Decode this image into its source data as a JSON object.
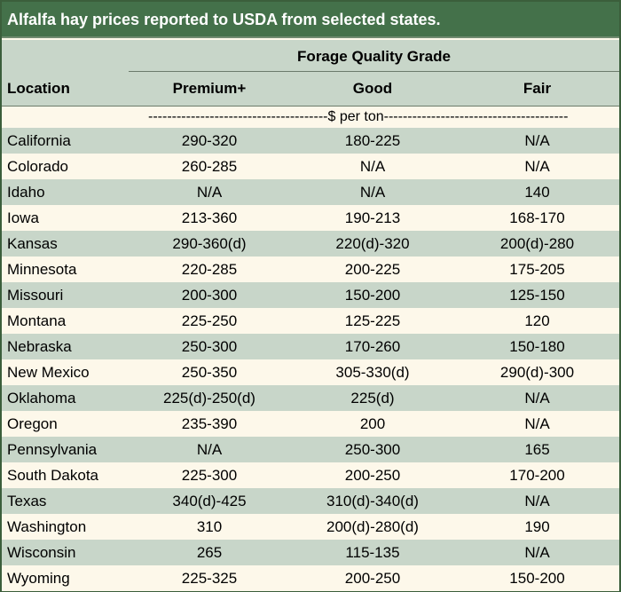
{
  "title": "Alfalfa hay prices reported to USDA from selected states.",
  "header": {
    "group": "Forage Quality Grade",
    "location": "Location",
    "columns": [
      "Premium+",
      "Good",
      "Fair"
    ]
  },
  "unit_row": "--------------------------------------$ per ton---------------------------------------",
  "rows": [
    {
      "location": "California",
      "premium": "290-320",
      "good": "180-225",
      "fair": "N/A"
    },
    {
      "location": "Colorado",
      "premium": "260-285",
      "good": "N/A",
      "fair": "N/A"
    },
    {
      "location": "Idaho",
      "premium": "N/A",
      "good": "N/A",
      "fair": "140"
    },
    {
      "location": "Iowa",
      "premium": "213-360",
      "good": "190-213",
      "fair": "168-170"
    },
    {
      "location": "Kansas",
      "premium": "290-360(d)",
      "good": "220(d)-320",
      "fair": "200(d)-280"
    },
    {
      "location": "Minnesota",
      "premium": "220-285",
      "good": "200-225",
      "fair": "175-205"
    },
    {
      "location": "Missouri",
      "premium": "200-300",
      "good": "150-200",
      "fair": "125-150"
    },
    {
      "location": "Montana",
      "premium": "225-250",
      "good": "125-225",
      "fair": "120"
    },
    {
      "location": "Nebraska",
      "premium": "250-300",
      "good": "170-260",
      "fair": "150-180"
    },
    {
      "location": "New Mexico",
      "premium": "250-350",
      "good": "305-330(d)",
      "fair": "290(d)-300"
    },
    {
      "location": "Oklahoma",
      "premium": "225(d)-250(d)",
      "good": "225(d)",
      "fair": "N/A"
    },
    {
      "location": "Oregon",
      "premium": "235-390",
      "good": "200",
      "fair": "N/A"
    },
    {
      "location": "Pennsylvania",
      "premium": "N/A",
      "good": "250-300",
      "fair": "165"
    },
    {
      "location": "South Dakota",
      "premium": "225-300",
      "good": "200-250",
      "fair": "170-200"
    },
    {
      "location": "Texas",
      "premium": "340(d)-425",
      "good": "310(d)-340(d)",
      "fair": "N/A"
    },
    {
      "location": "Washington",
      "premium": "310",
      "good": "200(d)-280(d)",
      "fair": "190"
    },
    {
      "location": "Wisconsin",
      "premium": "265",
      "good": "115-135",
      "fair": "N/A"
    },
    {
      "location": "Wyoming",
      "premium": "225-325",
      "good": "200-250",
      "fair": "150-200"
    }
  ],
  "colors": {
    "title_bg": "#44714a",
    "shade": "#c8d6c9",
    "plain": "#fdf8ea"
  }
}
